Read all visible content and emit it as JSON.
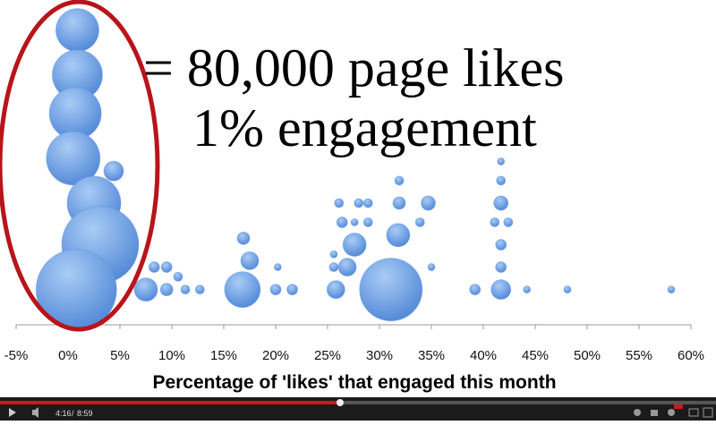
{
  "chart_data": {
    "type": "bubble",
    "annotations": [
      "= 80,000 page likes",
      "1% engagement"
    ],
    "x_label": "Percentage of 'likes' that engaged this month",
    "color": "#5b93e0",
    "xlim": [
      -5,
      60
    ],
    "ylim": [
      0,
      10
    ],
    "xticks": [
      {
        "value": -5,
        "label": "-5%"
      },
      {
        "value": 0,
        "label": "0%"
      },
      {
        "value": 5,
        "label": "5%"
      },
      {
        "value": 10,
        "label": "10%"
      },
      {
        "value": 15,
        "label": "15%"
      },
      {
        "value": 20,
        "label": "20%"
      },
      {
        "value": 25,
        "label": "25%"
      },
      {
        "value": 30,
        "label": "30%"
      },
      {
        "value": 35,
        "label": "35%"
      },
      {
        "value": 40,
        "label": "40%"
      },
      {
        "value": 45,
        "label": "45%"
      },
      {
        "value": 50,
        "label": "50%"
      },
      {
        "value": 55,
        "label": "55%"
      },
      {
        "value": 60,
        "label": "60%"
      }
    ],
    "x": [
      0.9,
      0.9,
      0.7,
      0.5,
      2.5,
      3.1,
      0.8,
      4.4,
      7.5,
      8.3,
      9.5,
      9.5,
      10.6,
      11.3,
      12.7,
      16.8,
      17.5,
      16.9,
      20.2,
      20.0,
      21.6,
      25.8,
      25.6,
      25.6,
      26.9,
      27.6,
      26.4,
      27.6,
      26.1,
      28.0,
      28.9,
      28.9,
      31.9,
      31.9,
      31.8,
      31.1,
      33.9,
      34.7,
      35.0,
      39.2,
      41.7,
      41.7,
      41.7,
      41.1,
      42.4,
      41.7,
      41.7,
      41.7,
      44.2,
      48.1,
      58.1
    ],
    "y": [
      9.2,
      7.8,
      6.6,
      5.2,
      3.8,
      2.5,
      1.1,
      4.8,
      1.1,
      1.8,
      1.8,
      1.1,
      1.5,
      1.1,
      1.1,
      1.1,
      2.0,
      2.7,
      1.8,
      1.1,
      1.1,
      1.1,
      1.8,
      2.2,
      1.8,
      2.5,
      3.2,
      3.2,
      3.8,
      3.8,
      3.8,
      3.2,
      3.8,
      4.5,
      2.8,
      1.1,
      3.2,
      3.8,
      1.8,
      1.1,
      1.1,
      1.8,
      2.5,
      3.2,
      3.2,
      3.8,
      4.5,
      5.1,
      1.1,
      1.1,
      1.1
    ],
    "sizes": [
      24,
      28,
      29,
      30,
      30,
      43,
      45,
      11,
      13,
      6,
      6,
      7,
      5,
      5,
      5,
      20,
      10,
      7,
      4,
      6,
      6,
      10,
      5,
      4,
      10,
      13,
      6,
      4,
      5,
      5,
      5,
      5,
      7,
      5,
      13,
      35,
      5,
      8,
      4,
      6,
      11,
      6,
      6,
      5,
      5,
      8,
      5,
      4,
      4,
      4,
      4
    ]
  },
  "player": {
    "current_time": "4:16",
    "duration": "8:59"
  }
}
